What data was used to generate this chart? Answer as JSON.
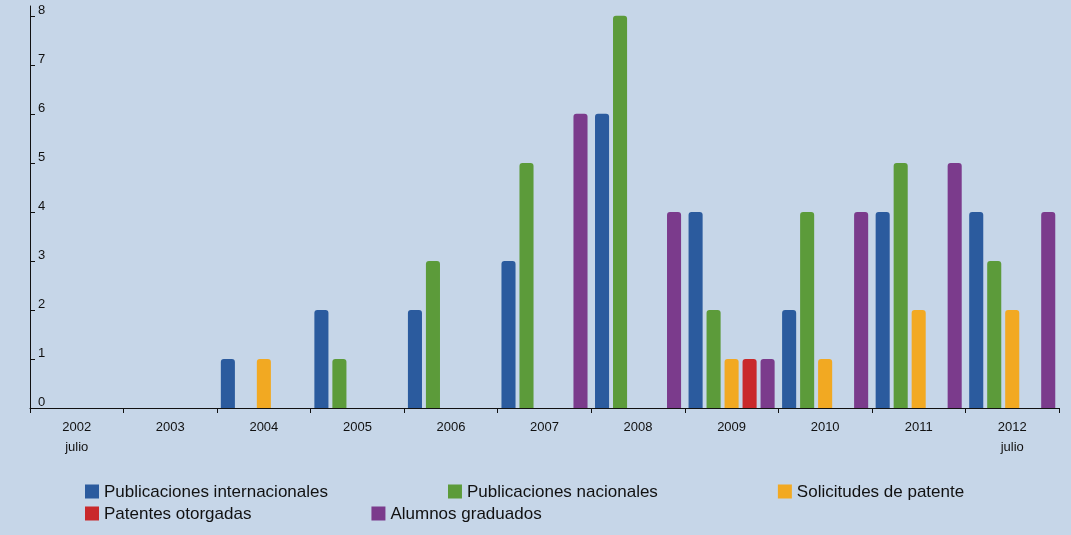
{
  "chart_data": {
    "type": "bar",
    "categories": [
      "2002\njulio",
      "2003",
      "2004",
      "2005",
      "2006",
      "2007",
      "2008",
      "2009",
      "2010",
      "2011",
      "2012\njulio"
    ],
    "series": [
      {
        "name": "Publicaciones internacionales",
        "color": "#2b5b9e",
        "values": [
          null,
          null,
          1,
          2,
          2,
          3,
          6,
          4,
          2,
          4,
          4
        ]
      },
      {
        "name": "Publicaciones nacionales",
        "color": "#5c9b3a",
        "values": [
          null,
          null,
          null,
          1,
          3,
          5,
          8,
          2,
          4,
          5,
          3
        ]
      },
      {
        "name": "Solicitudes de patente",
        "color": "#f2a922",
        "values": [
          null,
          null,
          1,
          null,
          null,
          null,
          null,
          1,
          1,
          2,
          2
        ]
      },
      {
        "name": "Patentes otorgadas",
        "color": "#c9292b",
        "values": [
          null,
          null,
          null,
          null,
          null,
          null,
          null,
          1,
          null,
          null,
          null
        ]
      },
      {
        "name": "Alumnos graduados",
        "color": "#7b3b8c",
        "values": [
          null,
          null,
          null,
          null,
          null,
          6,
          4,
          1,
          4,
          5,
          4
        ]
      }
    ],
    "ylim": [
      0,
      8.2
    ],
    "yticks": [
      0,
      1,
      2,
      3,
      4,
      5,
      6,
      7,
      8
    ],
    "grid": false,
    "legend": "bottom"
  }
}
